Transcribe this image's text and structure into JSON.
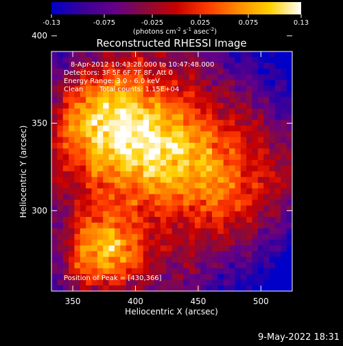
{
  "chart_data": {
    "type": "heatmap",
    "title": "Reconstructed RHESSI Image",
    "xlabel": "Heliocentric X (arcsec)",
    "ylabel": "Heliocentric Y (arcsec)",
    "xlim": [
      333,
      525
    ],
    "ylim": [
      254,
      391
    ],
    "xticks": [
      350,
      400,
      450,
      500
    ],
    "yticks": [
      300,
      350,
      400
    ],
    "peak": [
      430,
      366
    ],
    "colorbar": {
      "min": -0.13,
      "max": 0.13,
      "ticks": [
        "-0.13",
        "-0.075",
        "-0.025",
        "0.025",
        "0.075",
        "0.13"
      ],
      "units_prefix": "(photons cm",
      "units_exp1": "-2",
      "units_mid": " s",
      "units_exp2": "-1",
      "units_mid2": " asec",
      "units_exp3": "-2",
      "units_suffix": ")",
      "colormap_stops": [
        "#0000c8",
        "#3a0098",
        "#62008a",
        "#8a0a3a",
        "#c80000",
        "#ff3a00",
        "#ff8c00",
        "#ffd000",
        "#ffffff"
      ]
    },
    "annotations": {
      "time_range": "8-Apr-2012 10:43:28.000 to 10:47:48.000",
      "detectors": "Detectors: 3F 5F 6F 7F 8F, Att 0",
      "energy": "Energy Range: 3.0 - 6.0 keV",
      "clean": "Clean",
      "counts": "Total counts: 1.15E+04",
      "peak_label": "Position of Peak = [430,366]"
    }
  },
  "footer": {
    "timestamp": "9-May-2022 18:31"
  }
}
